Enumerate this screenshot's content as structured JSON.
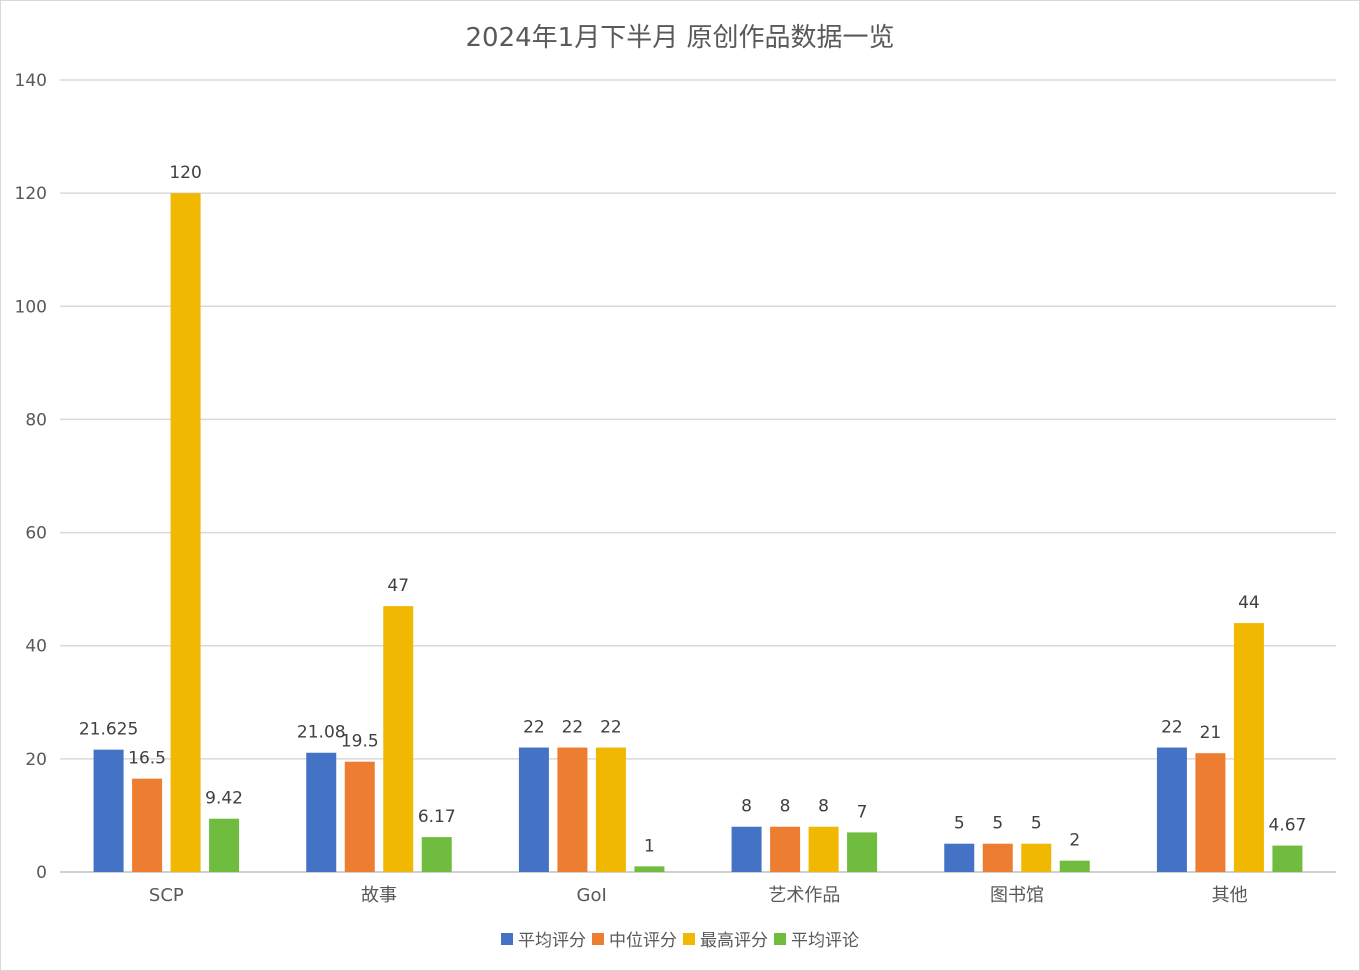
{
  "chart_data": {
    "type": "bar",
    "title": "2024年1月下半月  原创作品数据一览",
    "categories": [
      "SCP",
      "故事",
      "GoI",
      "艺术作品",
      "图书馆",
      "其他"
    ],
    "series": [
      {
        "name": "平均评分",
        "color": "#4472C4",
        "values": [
          21.625,
          21.08,
          22,
          8,
          5,
          22
        ],
        "labels": [
          "21.625",
          "21.08",
          "22",
          "8",
          "5",
          "22"
        ]
      },
      {
        "name": "中位评分",
        "color": "#ED7D31",
        "values": [
          16.5,
          19.5,
          22,
          8,
          5,
          21
        ],
        "labels": [
          "16.5",
          "19.5",
          "22",
          "8",
          "5",
          "21"
        ]
      },
      {
        "name": "最高评分",
        "color": "#F0B800",
        "values": [
          120,
          47,
          22,
          8,
          5,
          44
        ],
        "labels": [
          "120",
          "47",
          "22",
          "8",
          "5",
          "44"
        ]
      },
      {
        "name": "平均评论",
        "color": "#70BC3F",
        "values": [
          9.42,
          6.17,
          1,
          7,
          2,
          4.67
        ],
        "labels": [
          "9.42",
          "6.17",
          "1",
          "7",
          "2",
          "4.67"
        ]
      }
    ],
    "y_ticks": [
      "0",
      "20",
      "40",
      "60",
      "80",
      "100",
      "120",
      "140"
    ],
    "ylim": [
      0,
      140
    ],
    "xlabel": "",
    "ylabel": "",
    "grid": true,
    "legend_position": "bottom"
  }
}
